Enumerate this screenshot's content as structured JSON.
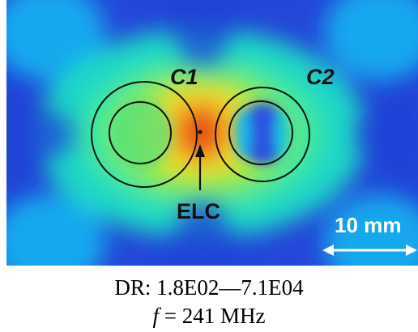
{
  "figure": {
    "label_c1": "C1",
    "label_c2": "C2",
    "label_elc": "ELC",
    "scale_bar_label": "10 mm"
  },
  "caption": {
    "dynamic_range": "DR: 1.8E02—7.1E04",
    "freq_symbol": "f",
    "freq_value": "= 241 MHz"
  },
  "colors": {
    "field_low": "#1f3fd6",
    "field_mid": "#1fd6c2",
    "field_high": "#e63a12",
    "outline": "#111111",
    "annotation": "#ffffff"
  }
}
